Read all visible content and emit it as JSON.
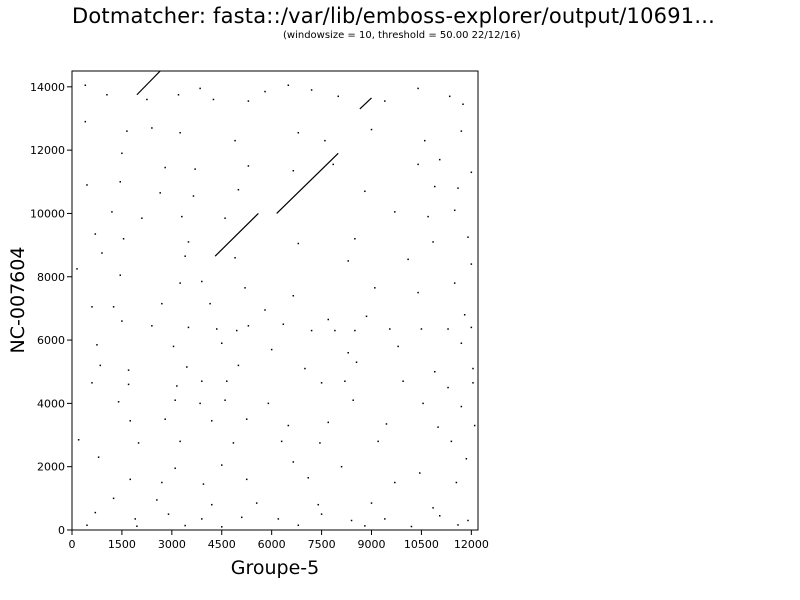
{
  "chart_data": {
    "type": "scatter",
    "title": "Dotmatcher: fasta::/var/lib/emboss-explorer/output/10691...",
    "subtitle": "(windowsize = 10, threshold = 50.00  22/12/16)",
    "xlabel": "Groupe-5",
    "ylabel": "NC-007604",
    "xlim": [
      0,
      12200
    ],
    "ylim": [
      0,
      14500
    ],
    "x_ticks": [
      0,
      1500,
      3000,
      4500,
      6000,
      7500,
      9000,
      10500,
      12000
    ],
    "y_ticks": [
      0,
      2000,
      4000,
      6000,
      8000,
      10000,
      12000,
      14000
    ],
    "grid": false,
    "series": [
      {
        "kind": "diagonal-segments",
        "segments": [
          {
            "x1": 4300,
            "y1": 8650,
            "x2": 5600,
            "y2": 10000
          },
          {
            "x1": 6150,
            "y1": 10000,
            "x2": 8000,
            "y2": 11900
          },
          {
            "x1": 1950,
            "y1": 13750,
            "x2": 2650,
            "y2": 14500
          },
          {
            "x1": 8650,
            "y1": 13300,
            "x2": 9000,
            "y2": 13650
          }
        ]
      },
      {
        "kind": "scatter-dots",
        "points": [
          [
            400,
            14050
          ],
          [
            1050,
            13750
          ],
          [
            2250,
            13600
          ],
          [
            3200,
            13750
          ],
          [
            3850,
            13950
          ],
          [
            4250,
            13600
          ],
          [
            5300,
            13550
          ],
          [
            5800,
            13850
          ],
          [
            6500,
            14050
          ],
          [
            7200,
            13900
          ],
          [
            8000,
            13700
          ],
          [
            9400,
            13550
          ],
          [
            10400,
            13950
          ],
          [
            11350,
            13700
          ],
          [
            11750,
            13450
          ],
          [
            400,
            12900
          ],
          [
            1650,
            12600
          ],
          [
            2400,
            12700
          ],
          [
            3250,
            12550
          ],
          [
            4900,
            12300
          ],
          [
            6800,
            12550
          ],
          [
            7600,
            12300
          ],
          [
            9000,
            12650
          ],
          [
            10600,
            12300
          ],
          [
            11700,
            12600
          ],
          [
            1500,
            11900
          ],
          [
            2800,
            11450
          ],
          [
            3700,
            11400
          ],
          [
            5300,
            11500
          ],
          [
            6650,
            11350
          ],
          [
            7850,
            11550
          ],
          [
            10400,
            11550
          ],
          [
            11050,
            11700
          ],
          [
            12000,
            11300
          ],
          [
            450,
            10900
          ],
          [
            1450,
            11000
          ],
          [
            2650,
            10650
          ],
          [
            3650,
            10550
          ],
          [
            5000,
            10750
          ],
          [
            8800,
            10700
          ],
          [
            10900,
            10850
          ],
          [
            11600,
            10800
          ],
          [
            1200,
            10050
          ],
          [
            2100,
            9850
          ],
          [
            3300,
            9900
          ],
          [
            4600,
            9850
          ],
          [
            9700,
            10050
          ],
          [
            10700,
            9900
          ],
          [
            11500,
            10100
          ],
          [
            700,
            9350
          ],
          [
            1550,
            9200
          ],
          [
            3500,
            9100
          ],
          [
            6800,
            9050
          ],
          [
            8500,
            9200
          ],
          [
            10850,
            9100
          ],
          [
            11900,
            9250
          ],
          [
            900,
            8750
          ],
          [
            3400,
            8650
          ],
          [
            4900,
            8600
          ],
          [
            8300,
            8500
          ],
          [
            10100,
            8550
          ],
          [
            12000,
            8400
          ],
          [
            150,
            8250
          ],
          [
            1450,
            8050
          ],
          [
            3250,
            7800
          ],
          [
            3900,
            7850
          ],
          [
            5200,
            7650
          ],
          [
            6650,
            7400
          ],
          [
            9100,
            7650
          ],
          [
            10400,
            7500
          ],
          [
            11500,
            7800
          ],
          [
            600,
            7050
          ],
          [
            1250,
            7050
          ],
          [
            2700,
            7150
          ],
          [
            4150,
            7150
          ],
          [
            5800,
            6950
          ],
          [
            7700,
            6650
          ],
          [
            8850,
            6750
          ],
          [
            11800,
            6800
          ],
          [
            1500,
            6600
          ],
          [
            2400,
            6450
          ],
          [
            3500,
            6400
          ],
          [
            4350,
            6350
          ],
          [
            4950,
            6300
          ],
          [
            5300,
            6450
          ],
          [
            6350,
            6500
          ],
          [
            7200,
            6300
          ],
          [
            7900,
            6300
          ],
          [
            8500,
            6300
          ],
          [
            9550,
            6350
          ],
          [
            10500,
            6350
          ],
          [
            11300,
            6350
          ],
          [
            12000,
            6400
          ],
          [
            750,
            5850
          ],
          [
            3050,
            5800
          ],
          [
            4500,
            5900
          ],
          [
            6000,
            5700
          ],
          [
            8300,
            5600
          ],
          [
            9800,
            5800
          ],
          [
            11700,
            5900
          ],
          [
            850,
            5200
          ],
          [
            1700,
            5050
          ],
          [
            3450,
            5150
          ],
          [
            5000,
            5200
          ],
          [
            7000,
            5100
          ],
          [
            8550,
            5300
          ],
          [
            10900,
            5000
          ],
          [
            12050,
            5100
          ],
          [
            600,
            4650
          ],
          [
            1700,
            4600
          ],
          [
            3150,
            4550
          ],
          [
            3900,
            4700
          ],
          [
            4650,
            4700
          ],
          [
            7500,
            4650
          ],
          [
            8200,
            4700
          ],
          [
            9950,
            4700
          ],
          [
            11300,
            4500
          ],
          [
            12050,
            4650
          ],
          [
            1400,
            4050
          ],
          [
            3100,
            4100
          ],
          [
            3850,
            4000
          ],
          [
            4600,
            4100
          ],
          [
            5900,
            4000
          ],
          [
            8450,
            4100
          ],
          [
            10550,
            4000
          ],
          [
            11700,
            3900
          ],
          [
            1750,
            3450
          ],
          [
            2800,
            3500
          ],
          [
            4200,
            3450
          ],
          [
            5250,
            3500
          ],
          [
            6500,
            3300
          ],
          [
            7700,
            3400
          ],
          [
            9450,
            3350
          ],
          [
            11000,
            3250
          ],
          [
            12100,
            3300
          ],
          [
            200,
            2850
          ],
          [
            2000,
            2750
          ],
          [
            3250,
            2800
          ],
          [
            4850,
            2750
          ],
          [
            6300,
            2800
          ],
          [
            7450,
            2750
          ],
          [
            9200,
            2800
          ],
          [
            11400,
            2800
          ],
          [
            800,
            2300
          ],
          [
            3100,
            1950
          ],
          [
            4500,
            2050
          ],
          [
            6650,
            2150
          ],
          [
            8100,
            2000
          ],
          [
            10450,
            1800
          ],
          [
            11850,
            2250
          ],
          [
            1750,
            1600
          ],
          [
            2700,
            1500
          ],
          [
            3950,
            1450
          ],
          [
            5250,
            1600
          ],
          [
            7100,
            1650
          ],
          [
            9700,
            1500
          ],
          [
            11550,
            1500
          ],
          [
            1250,
            1000
          ],
          [
            2550,
            950
          ],
          [
            4200,
            800
          ],
          [
            5550,
            850
          ],
          [
            7400,
            800
          ],
          [
            9000,
            850
          ],
          [
            10850,
            700
          ],
          [
            700,
            550
          ],
          [
            1900,
            350
          ],
          [
            2900,
            500
          ],
          [
            3900,
            350
          ],
          [
            5100,
            400
          ],
          [
            6200,
            350
          ],
          [
            7500,
            500
          ],
          [
            8400,
            300
          ],
          [
            9400,
            350
          ],
          [
            11050,
            450
          ],
          [
            11900,
            300
          ],
          [
            450,
            150
          ],
          [
            1950,
            120
          ],
          [
            3400,
            140
          ],
          [
            4500,
            100
          ],
          [
            6800,
            150
          ],
          [
            8800,
            130
          ],
          [
            10200,
            110
          ],
          [
            11600,
            160
          ]
        ]
      }
    ]
  }
}
